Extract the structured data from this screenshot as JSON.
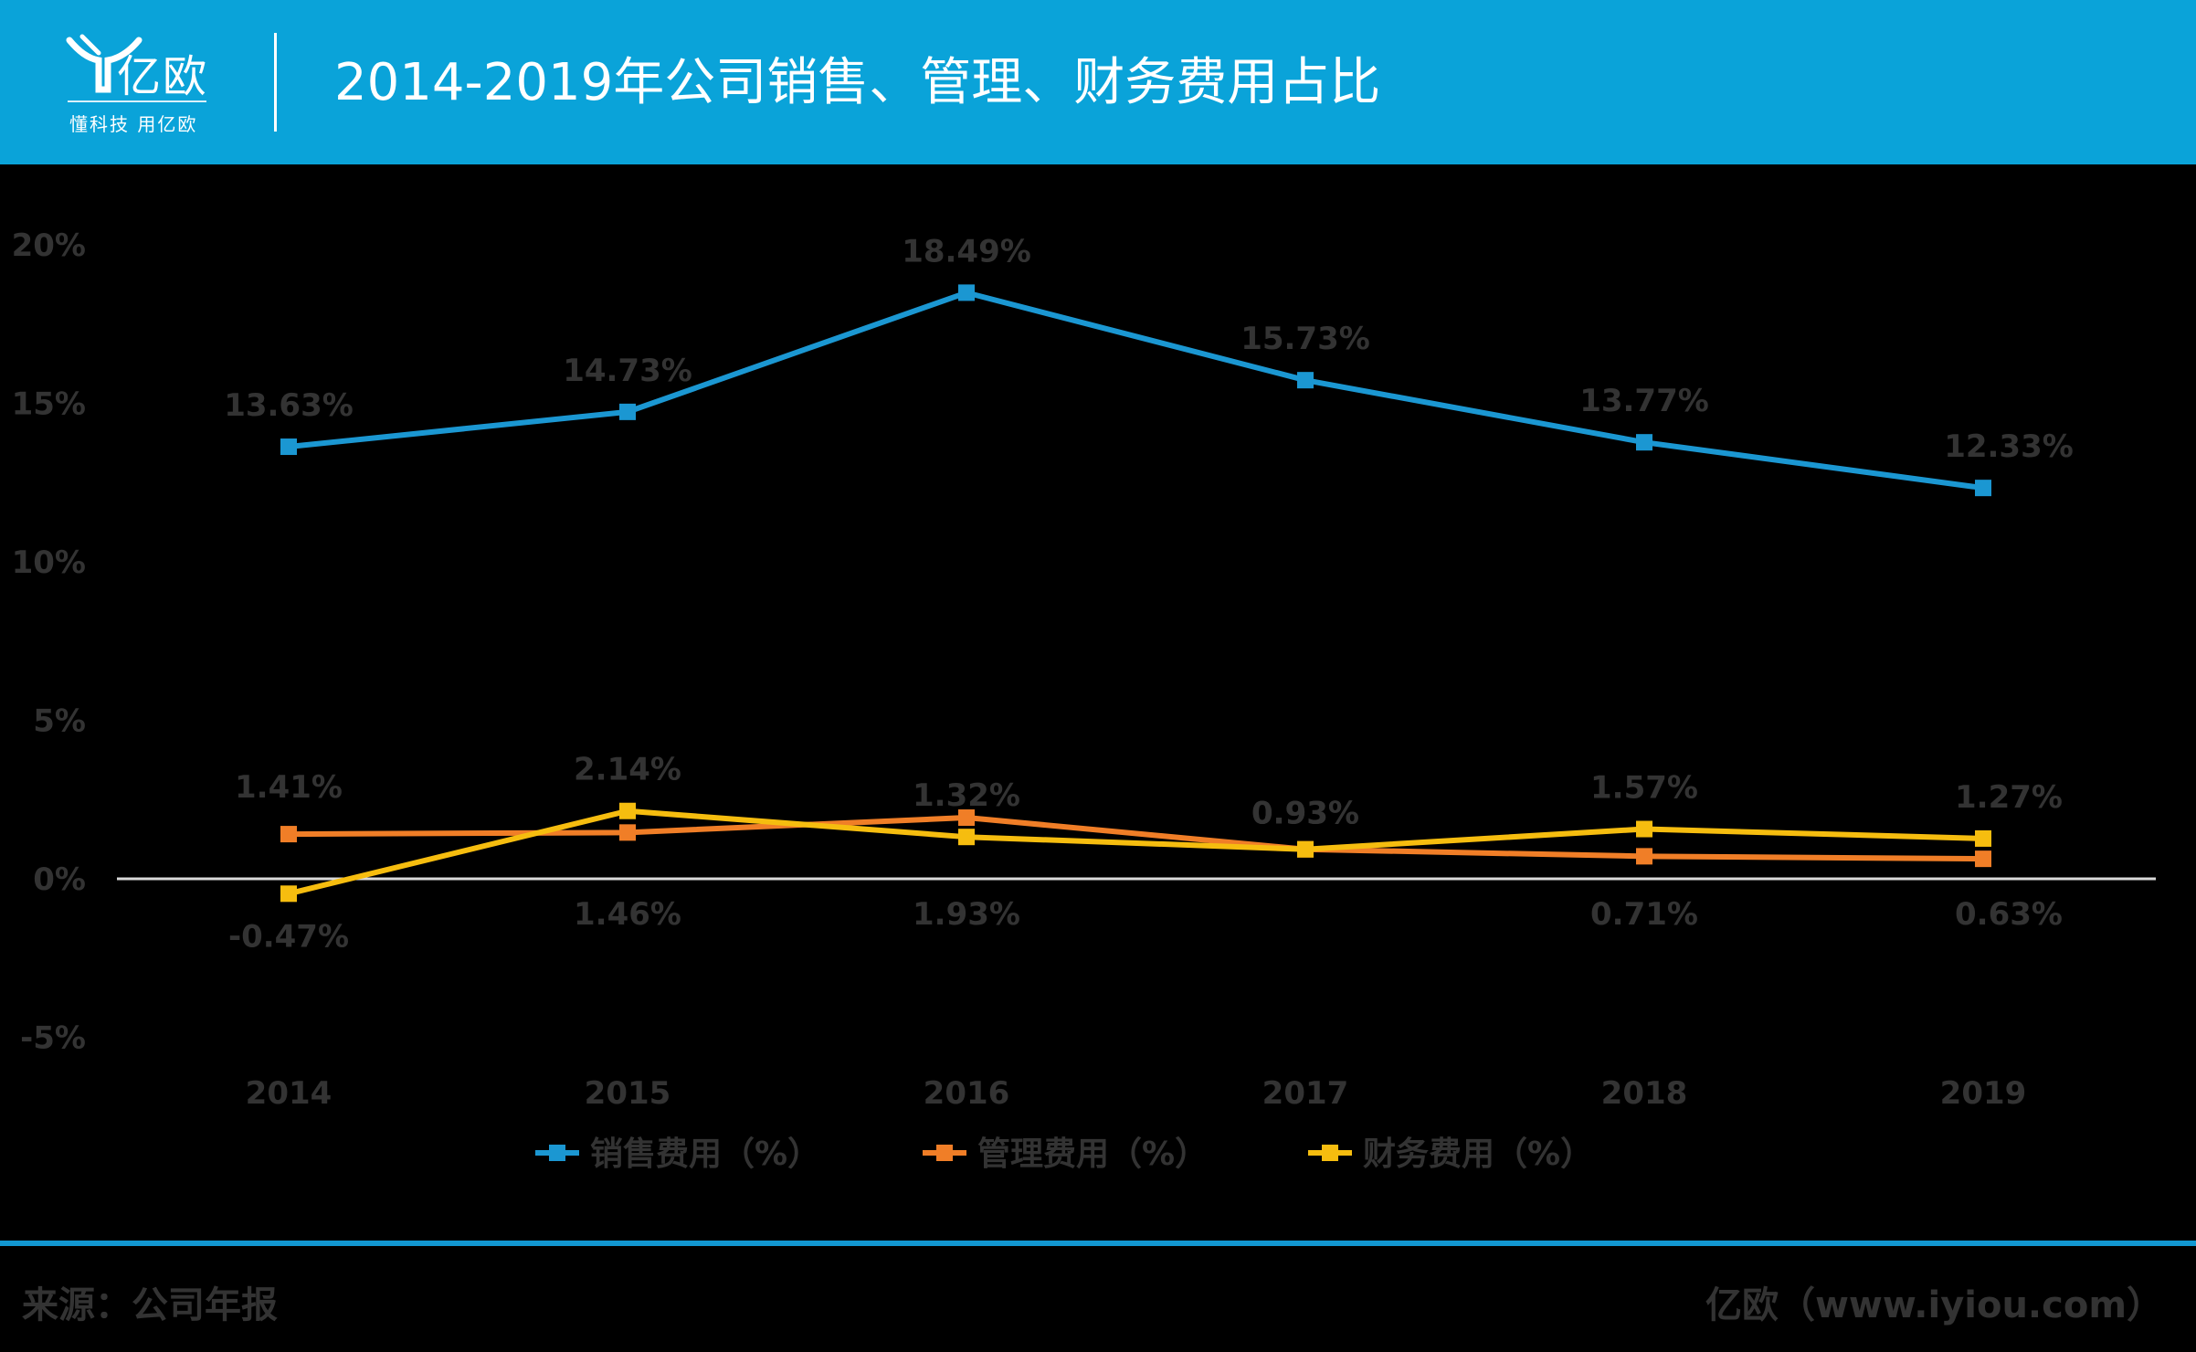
{
  "header": {
    "brand_name": "亿欧",
    "slogan": "懂科技 用亿欧",
    "title": "2014-2019年公司销售、管理、财务费用占比"
  },
  "footer": {
    "source": "来源：公司年报",
    "credit": "亿欧（www.iyiou.com）"
  },
  "colors": {
    "header_bg": "#0aa3d9",
    "background": "#000000",
    "sales": "#1b97d2",
    "management": "#f07e27",
    "finance": "#f6bd0f",
    "axis_text": "#333333",
    "zero_line": "#d9d9d9",
    "footer_rule": "#1297d1"
  },
  "chart_data": {
    "type": "line",
    "categories": [
      "2014",
      "2015",
      "2016",
      "2017",
      "2018",
      "2019"
    ],
    "y_ticks": [
      "20%",
      "15%",
      "10%",
      "5%",
      "0%",
      "-5%"
    ],
    "ylim": [
      -5,
      20
    ],
    "grid": false,
    "legend_position": "bottom",
    "series": [
      {
        "name": "销售费用（%）",
        "values": [
          13.63,
          14.73,
          18.49,
          15.73,
          13.77,
          12.33
        ],
        "labels": [
          "13.63%",
          "14.73%",
          "18.49%",
          "15.73%",
          "13.77%",
          "12.33%"
        ]
      },
      {
        "name": "管理费用（%）",
        "values": [
          1.41,
          1.46,
          1.93,
          0.93,
          0.71,
          0.63
        ],
        "labels": [
          "1.41%",
          "1.46%",
          "1.93%",
          "0.93%",
          "0.71%",
          "0.63%"
        ]
      },
      {
        "name": "财务费用（%）",
        "values": [
          -0.47,
          2.14,
          1.32,
          0.93,
          1.57,
          1.27
        ],
        "labels": [
          "-0.47%",
          "2.14%",
          "1.32%",
          "0.93%",
          "1.57%",
          "1.27%"
        ]
      }
    ]
  }
}
